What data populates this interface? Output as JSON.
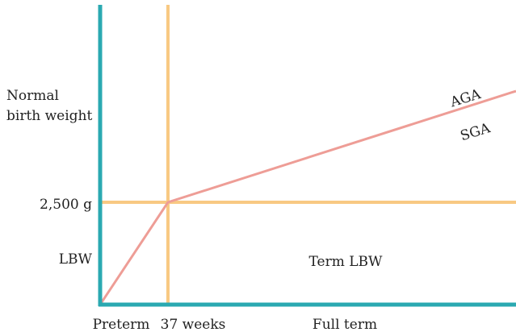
{
  "labels": {
    "y_top": [
      "Normal",
      "birth weight"
    ],
    "threshold_weight": "2,500 g",
    "lbw": "LBW",
    "term_lbw": "Term LBW",
    "aga": "AGA",
    "sga": "SGA",
    "preterm": "Preterm",
    "threshold_age": "37 weeks",
    "full_term": "Full term"
  }
}
